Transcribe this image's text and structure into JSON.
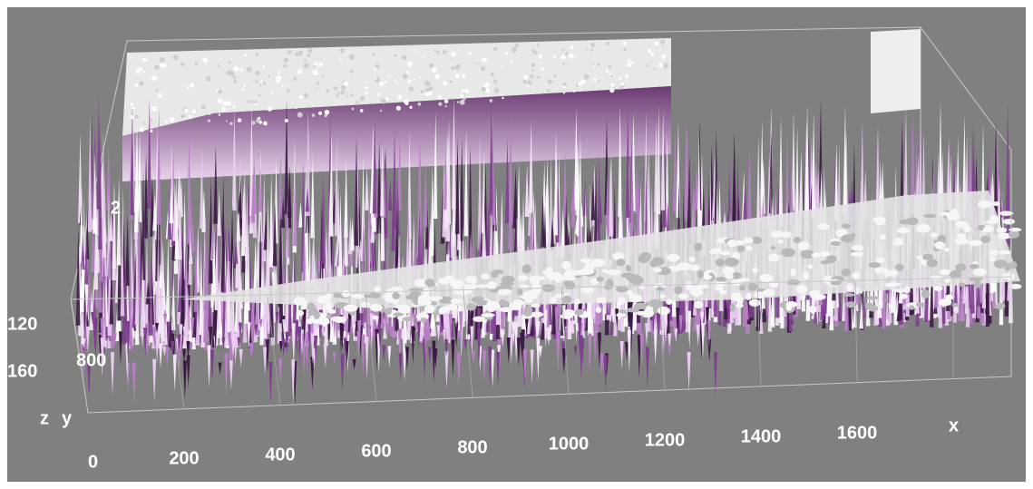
{
  "axes": {
    "x": {
      "label": "x",
      "ticks": [
        "0",
        "200",
        "400",
        "600",
        "800",
        "1000",
        "1200",
        "1400",
        "1600"
      ]
    },
    "y": {
      "label": "y",
      "ticks": [
        "800"
      ]
    },
    "z": {
      "label": "z",
      "ticks": [
        "120",
        "160",
        "2"
      ]
    }
  }
}
